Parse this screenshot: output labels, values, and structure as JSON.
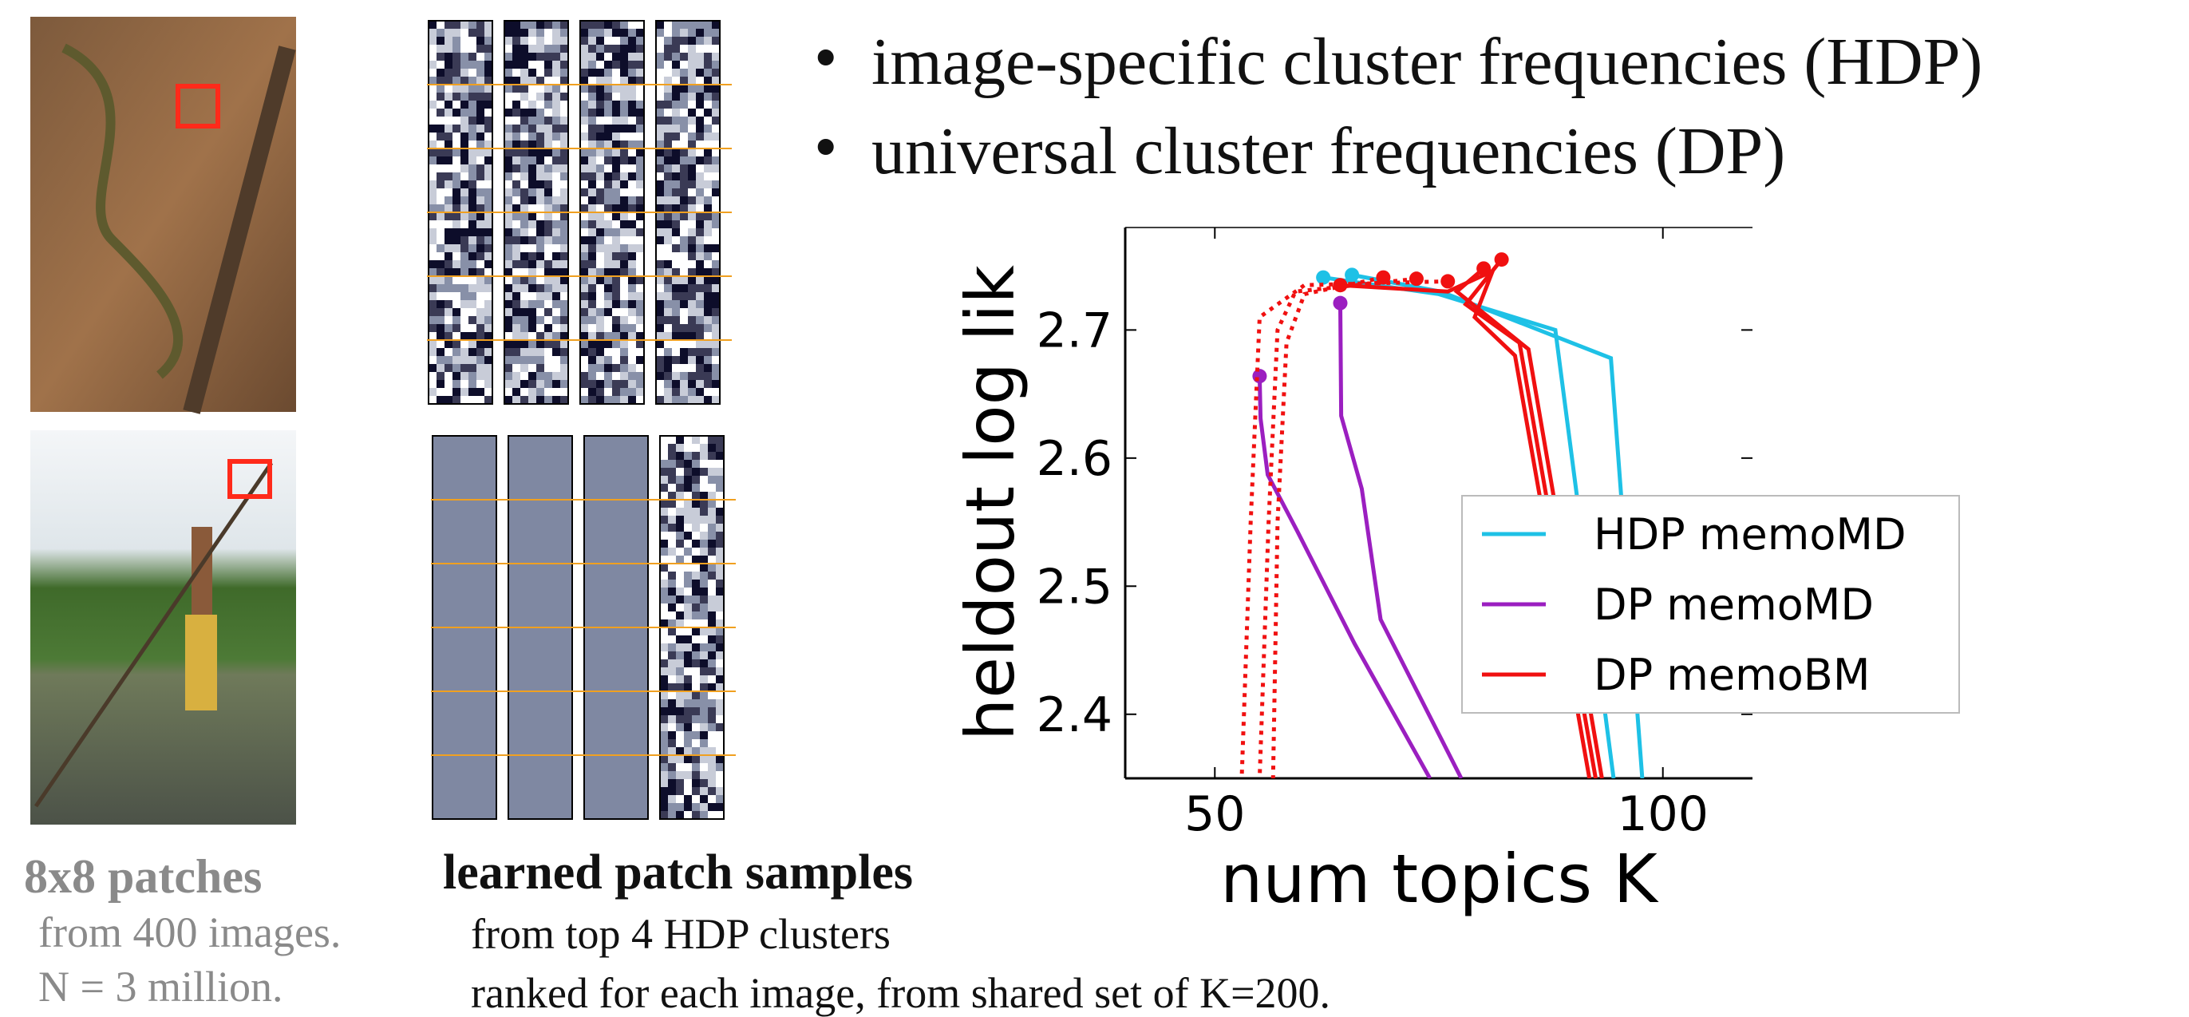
{
  "slide": {
    "bullets": [
      "image-specific cluster frequencies (HDP)",
      "universal cluster frequencies (DP)"
    ],
    "left_caption": {
      "title": "8x8 patches",
      "lines": [
        "from 400 images.",
        "N = 3 million."
      ]
    },
    "middle_caption": {
      "title": "learned patch samples",
      "lines": [
        "from top 4 HDP clusters",
        "ranked for each image, from shared set of K=200."
      ]
    }
  },
  "chart_data": {
    "type": "line",
    "xlabel": "num topics K",
    "ylabel": "heldout log lik",
    "xlim": [
      40,
      110
    ],
    "ylim": [
      2.35,
      2.78
    ],
    "xticks": [
      50,
      100
    ],
    "yticks": [
      2.4,
      2.5,
      2.6,
      2.7
    ],
    "legend": "center right",
    "series": [
      {
        "name": "HDP memoMD",
        "color": "#1ec1e6",
        "lines": [
          {
            "x": [
              62.1,
              75,
              88,
              94.5
            ],
            "values": [
              2.741,
              2.728,
              2.7,
              2.35
            ]
          },
          {
            "x": [
              65.3,
              75.2,
              94.2,
              97.7
            ],
            "values": [
              2.743,
              2.73,
              2.678,
              2.35
            ]
          }
        ]
      },
      {
        "name": "DP memoMD",
        "color": "#9b1fc0",
        "lines": [
          {
            "x": [
              55,
              55.1,
              55.9,
              59.2,
              65.6,
              74
            ],
            "values": [
              2.664,
              2.631,
              2.587,
              2.543,
              2.455,
              2.35
            ]
          },
          {
            "x": [
              64,
              64.1,
              66.4,
              68.5,
              77.5
            ],
            "values": [
              2.721,
              2.633,
              2.576,
              2.474,
              2.35
            ]
          }
        ]
      },
      {
        "name": "DP memoBM",
        "color": "#f01010",
        "lines": [
          {
            "x": [
              82,
              78,
              84,
              92.5
            ],
            "values": [
              2.755,
              2.72,
              2.69,
              2.35
            ]
          },
          {
            "x": [
              80,
              77,
              85,
              93.2
            ],
            "values": [
              2.748,
              2.73,
              2.685,
              2.35
            ]
          },
          {
            "x": [
              64,
              76,
              81,
              79,
              83.5,
              91.8
            ],
            "values": [
              2.735,
              2.73,
              2.746,
              2.71,
              2.68,
              2.35
            ]
          },
          {
            "x": [
              76,
              60,
              55,
              54,
              53
            ],
            "values": [
              2.738,
              2.735,
              2.71,
              2.55,
              2.35
            ],
            "dotted": true
          },
          {
            "x": [
              72.5,
              59,
              57,
              56,
              55
            ],
            "values": [
              2.74,
              2.73,
              2.7,
              2.55,
              2.35
            ],
            "dotted": true
          },
          {
            "x": [
              68.8,
              60,
              58,
              57,
              56.5
            ],
            "values": [
              2.741,
              2.728,
              2.69,
              2.55,
              2.35
            ],
            "dotted": true
          }
        ]
      }
    ]
  }
}
